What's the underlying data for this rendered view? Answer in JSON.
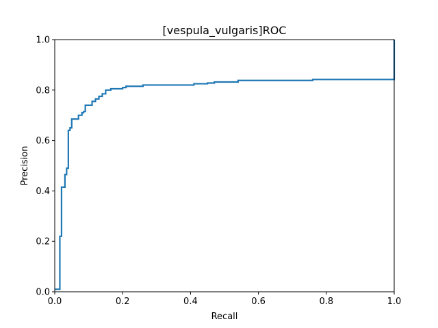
{
  "chart_data": {
    "type": "line",
    "title": "[vespula_vulgaris]ROC",
    "xlabel": "Recall",
    "ylabel": "Precision",
    "xlim": [
      0.0,
      1.0
    ],
    "ylim": [
      0.0,
      1.0
    ],
    "grid": false,
    "x_ticks": [
      "0.0",
      "0.2",
      "0.4",
      "0.6",
      "0.8",
      "1.0"
    ],
    "y_ticks": [
      "0.0",
      "0.2",
      "0.4",
      "0.6",
      "0.8",
      "1.0"
    ],
    "line_color": "#1f77b4",
    "series": [
      {
        "step": "post",
        "x": [
          0.0,
          0.015,
          0.02,
          0.03,
          0.035,
          0.04,
          0.045,
          0.05,
          0.055,
          0.07,
          0.08,
          0.085,
          0.09,
          0.11,
          0.12,
          0.13,
          0.135,
          0.14,
          0.15,
          0.165,
          0.2,
          0.21,
          0.23,
          0.26,
          0.41,
          0.45,
          0.47,
          0.54,
          0.76,
          1.0,
          1.0
        ],
        "y": [
          0.01,
          0.22,
          0.415,
          0.465,
          0.49,
          0.64,
          0.65,
          0.685,
          0.685,
          0.7,
          0.71,
          0.715,
          0.74,
          0.755,
          0.765,
          0.775,
          0.775,
          0.785,
          0.8,
          0.805,
          0.81,
          0.815,
          0.815,
          0.82,
          0.825,
          0.828,
          0.832,
          0.838,
          0.842,
          0.842,
          1.0
        ]
      }
    ]
  }
}
